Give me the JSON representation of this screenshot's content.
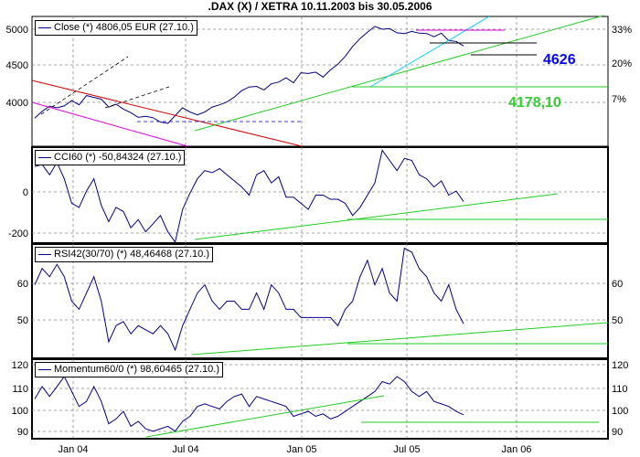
{
  "title": ".DAX (X) / XETRA 10.11.2003 bis 30.05.2006",
  "chart_data": [
    {
      "panel": "price",
      "type": "line",
      "legend": "Close (*) 4806,05 EUR (27.10.)",
      "y_left_ticks": [
        "5000",
        "4500",
        "4000"
      ],
      "y_right_ticks": [
        "33%",
        "20%",
        "7%"
      ],
      "y_range": [
        3400,
        5220
      ],
      "annotations": [
        {
          "text": "4626",
          "color": "#0000ff"
        },
        {
          "text": "4178,10",
          "color": "#33cc33"
        }
      ],
      "series": [
        {
          "values": [
            3794,
            3890,
            3963,
            3940,
            3965,
            4040,
            3980,
            4110,
            4085,
            4060,
            3950,
            3990,
            3920,
            3870,
            3805,
            3820,
            3800,
            3740,
            3720,
            3830,
            3940,
            3880,
            3840,
            3880,
            3950,
            3980,
            4020,
            4090,
            4180,
            4230,
            4240,
            4190,
            4275,
            4300,
            4360,
            4290,
            4430,
            4420,
            4440,
            4370,
            4470,
            4550,
            4660,
            4800,
            4910,
            5000,
            5080,
            5040,
            5050,
            4990,
            4980,
            5010,
            4985,
            4980,
            4935,
            4985,
            4880,
            4870,
            4806
          ]
        }
      ]
    },
    {
      "panel": "cci",
      "type": "line",
      "legend": "CCI60 (*) -50,84324 (27.10.)",
      "y_left_ticks": [
        "0",
        "-200"
      ],
      "y_range": [
        -255,
        215
      ],
      "series": [
        {
          "values": [
            120,
            130,
            80,
            140,
            60,
            -60,
            -80,
            0,
            60,
            -70,
            -150,
            -80,
            -100,
            -180,
            -140,
            -200,
            -160,
            -120,
            -200,
            -250,
            -90,
            -10,
            60,
            100,
            90,
            110,
            80,
            50,
            20,
            -20,
            80,
            100,
            40,
            70,
            -30,
            -30,
            -60,
            -90,
            -20,
            -20,
            -40,
            -40,
            -60,
            -120,
            -80,
            -20,
            40,
            200,
            150,
            100,
            160,
            150,
            80,
            60,
            20,
            50,
            -20,
            0,
            -51
          ]
        }
      ]
    },
    {
      "panel": "rsi",
      "type": "line",
      "legend": "RSI42(30/70) (*) 48,46468 (27.10.)",
      "y_left_ticks": [
        "60",
        "50"
      ],
      "y_right_ticks": [
        "60",
        "50"
      ],
      "y_range": [
        40,
        68
      ],
      "series": [
        {
          "values": [
            58,
            62,
            60,
            63,
            60,
            54,
            52,
            56,
            60,
            54,
            44,
            48,
            49,
            46,
            48,
            47,
            46,
            48,
            46,
            42,
            48,
            52,
            56,
            58,
            54,
            52,
            54,
            54,
            52,
            52,
            56,
            52,
            58,
            56,
            52,
            52,
            50,
            50,
            50,
            50,
            50,
            48,
            52,
            54,
            60,
            64,
            58,
            62,
            56,
            54,
            67,
            66,
            62,
            60,
            56,
            54,
            58,
            52,
            48.5
          ]
        }
      ]
    },
    {
      "panel": "momentum",
      "type": "line",
      "legend": "Momentum60/0 (*) 98,60465 (27.10.)",
      "y_left_ticks": [
        "120",
        "110",
        "100",
        "90"
      ],
      "y_right_ticks": [
        "120",
        "110",
        "100",
        "90"
      ],
      "y_range": [
        89,
        121
      ],
      "series": [
        {
          "values": [
            105,
            110,
            106,
            110,
            114,
            108,
            102,
            104,
            110,
            104,
            95,
            97,
            100,
            94,
            96,
            93,
            92,
            93,
            94,
            92,
            96,
            98,
            102,
            103,
            102,
            101,
            104,
            106,
            107,
            102,
            106,
            105,
            104,
            103,
            102,
            98,
            99,
            100,
            98,
            99,
            97,
            98,
            100,
            102,
            104,
            106,
            108,
            112,
            111,
            114,
            112,
            108,
            106,
            108,
            104,
            103,
            102,
            100,
            98.6
          ]
        }
      ]
    }
  ],
  "x_tick_labels": [
    "Jan 04",
    "Jul 04",
    "Jan 05",
    "Jul 05",
    "Jan 06"
  ],
  "colors": {
    "series": "#00008b",
    "green": "#22cc22",
    "red": "#dd0000",
    "magenta": "#dd00dd",
    "cyan": "#00ccff",
    "grid": "#888888"
  }
}
